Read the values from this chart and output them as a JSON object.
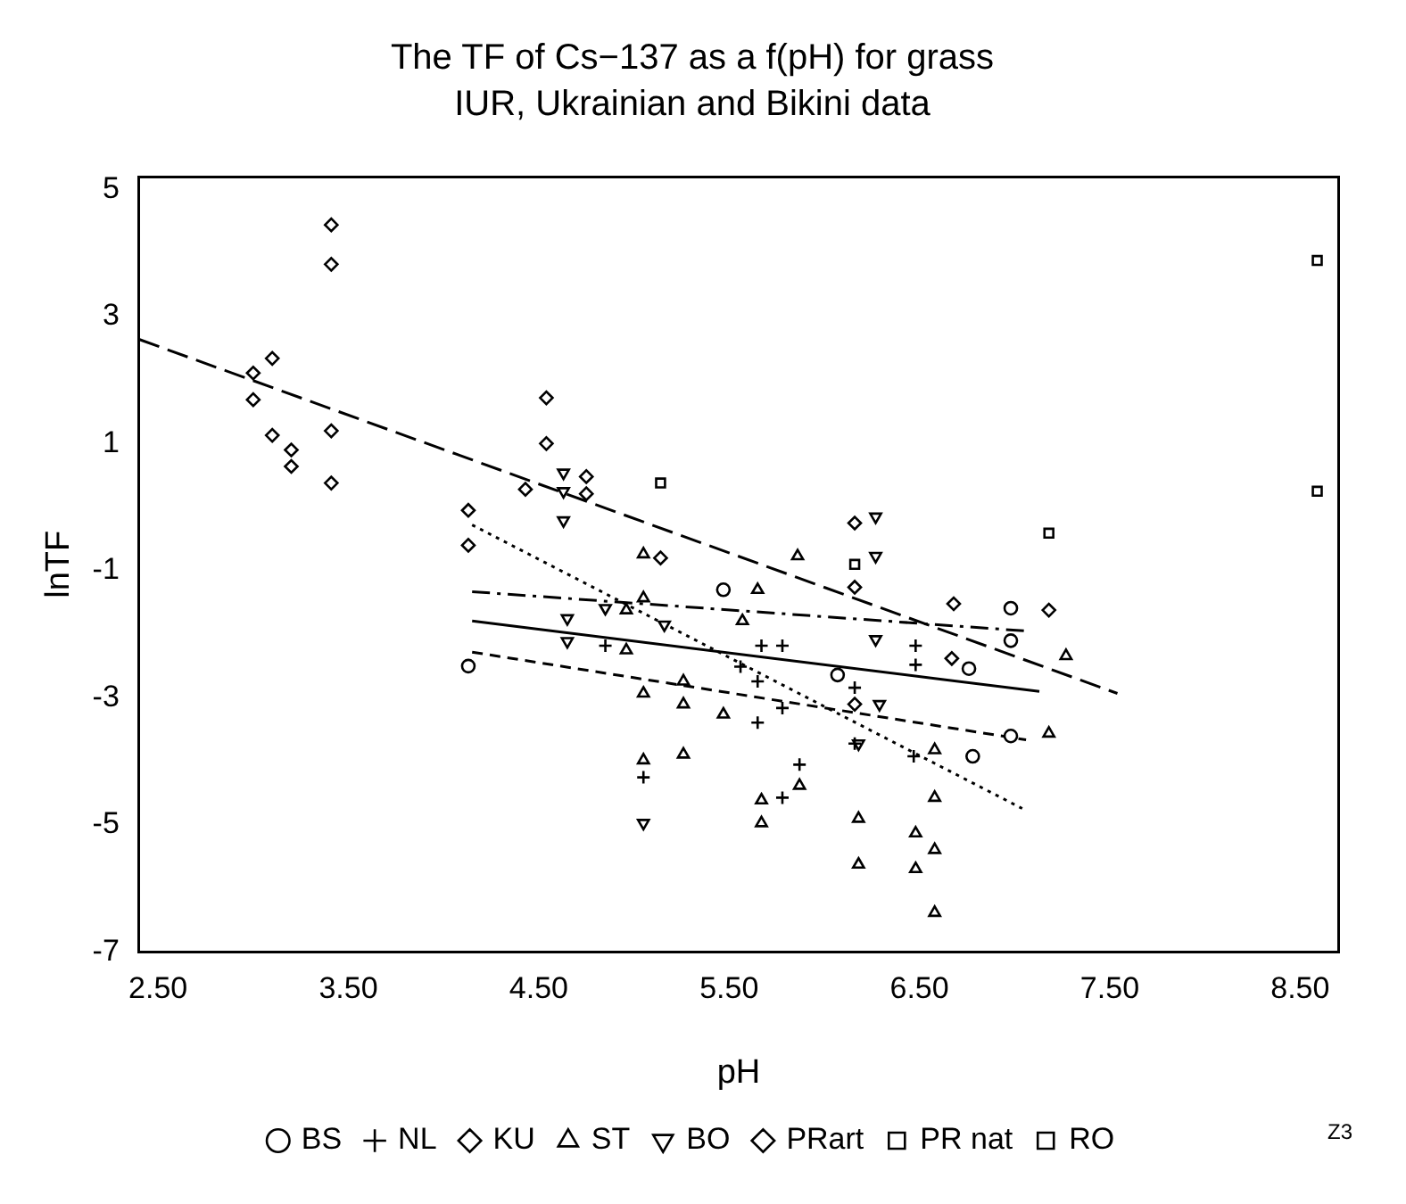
{
  "chart_data": {
    "type": "scatter",
    "title": "The TF of Cs−137 as a f(pH) for grass",
    "subtitle": "IUR, Ukrainian and Bikini data",
    "xlabel": "pH",
    "ylabel": "lnTF",
    "xlim": [
      2.4,
      8.7
    ],
    "xticks": [
      {
        "value": 2.5,
        "label": "2.50"
      },
      {
        "value": 3.5,
        "label": "3.50"
      },
      {
        "value": 4.5,
        "label": "4.50"
      },
      {
        "value": 5.5,
        "label": "5.50"
      },
      {
        "value": 6.5,
        "label": "6.50"
      },
      {
        "value": 7.5,
        "label": "7.50"
      },
      {
        "value": 8.5,
        "label": "8.50"
      }
    ],
    "ylim": [
      -7,
      5.2
    ],
    "yticks": [
      -7,
      -5,
      -3,
      -1,
      1,
      3,
      5
    ],
    "grid": false,
    "legend": "bottom",
    "annotations": [
      "Z3"
    ],
    "series": [
      {
        "name": "BS",
        "color": "#000000",
        "marker": "circle",
        "x": [
          4.13,
          5.47,
          6.07,
          6.76,
          6.98,
          6.98,
          6.98,
          6.78
        ],
        "values": [
          -2.5,
          -1.3,
          -2.64,
          -2.54,
          -1.59,
          -2.1,
          -3.6,
          -3.92
        ]
      },
      {
        "name": "NL",
        "color": "#000000",
        "marker": "cross",
        "x": [
          4.85,
          5.05,
          5.56,
          5.67,
          5.78,
          6.48,
          6.48,
          5.65,
          5.65,
          5.78,
          5.87,
          5.78,
          6.16,
          6.16,
          6.47
        ],
        "values": [
          -2.18,
          -4.25,
          -2.51,
          -2.18,
          -2.18,
          -2.18,
          -2.48,
          -2.74,
          -3.39,
          -3.16,
          -4.05,
          -4.57,
          -2.84,
          -3.72,
          -3.92
        ]
      },
      {
        "name": "KU",
        "color": "#000000",
        "marker": "diamond",
        "x": [
          3.41,
          3.41,
          3.1,
          3.0,
          3.0,
          3.1,
          3.2,
          3.2,
          3.41,
          3.41,
          4.54,
          4.54,
          4.43,
          4.75,
          4.75,
          4.13,
          4.13,
          6.16,
          6.68,
          6.67,
          6.16
        ],
        "values": [
          4.44,
          3.82,
          2.34,
          2.11,
          1.69,
          1.13,
          0.9,
          0.64,
          1.2,
          0.38,
          1.72,
          1.0,
          0.28,
          0.48,
          0.21,
          -0.05,
          -0.6,
          -0.25,
          -1.52,
          -2.38,
          -3.1
        ]
      },
      {
        "name": "ST",
        "color": "#000000",
        "marker": "triangle",
        "x": [
          5.05,
          5.05,
          4.96,
          4.96,
          5.05,
          5.05,
          5.26,
          5.26,
          5.26,
          5.86,
          5.65,
          5.57,
          5.47,
          5.67,
          5.67,
          5.87,
          6.18,
          6.18,
          6.58,
          6.58,
          6.48,
          6.48,
          6.58,
          6.58,
          7.27,
          7.18
        ],
        "values": [
          -0.74,
          -1.43,
          -1.62,
          -2.25,
          -2.93,
          -3.98,
          -2.74,
          -3.1,
          -3.89,
          -0.77,
          -1.3,
          -1.79,
          -3.26,
          -4.61,
          -4.97,
          -4.38,
          -4.9,
          -5.62,
          -3.82,
          -4.57,
          -5.13,
          -5.69,
          -6.38,
          -5.39,
          -2.34,
          -3.56
        ]
      },
      {
        "name": "BO",
        "color": "#000000",
        "marker": "triangle-down",
        "x": [
          4.63,
          4.63,
          4.63,
          4.65,
          4.65,
          4.85,
          5.16,
          5.05,
          6.27,
          6.27,
          6.27,
          6.29,
          6.18
        ],
        "values": [
          0.54,
          0.25,
          -0.21,
          -1.75,
          -2.11,
          -1.59,
          -1.85,
          -4.97,
          -0.15,
          -0.77,
          -2.08,
          -3.1,
          -3.72
        ]
      },
      {
        "name": "PRart",
        "color": "#000000",
        "marker": "diamond",
        "x": [
          5.14,
          6.16,
          7.18
        ],
        "values": [
          -0.8,
          -1.26,
          -1.62
        ]
      },
      {
        "name": "PR nat",
        "color": "#000000",
        "marker": "square",
        "x": [
          5.14,
          6.16,
          7.18
        ],
        "values": [
          0.38,
          -0.9,
          -0.41
        ]
      },
      {
        "name": "RO",
        "color": "#000000",
        "marker": "square",
        "x": [
          8.59,
          8.59
        ],
        "values": [
          3.88,
          0.25
        ]
      },
      {
        "type": "line",
        "color": "#000000",
        "line_style": "solid",
        "marker": "none",
        "x": [
          4.15,
          7.13
        ],
        "values": [
          -1.79,
          -2.9
        ]
      },
      {
        "type": "line",
        "color": "#000000",
        "line_style": "dashed",
        "marker": "none",
        "x": [
          4.15,
          7.06
        ],
        "values": [
          -2.28,
          -3.66
        ]
      },
      {
        "type": "line",
        "color": "#000000",
        "line_style": "longdashed",
        "marker": "none",
        "x": [
          2.4,
          7.54
        ],
        "values": [
          2.64,
          -2.93
        ]
      },
      {
        "type": "line",
        "color": "#000000",
        "line_style": "dotted",
        "marker": "none",
        "x": [
          4.15,
          7.04
        ],
        "values": [
          -0.28,
          -4.74
        ]
      },
      {
        "type": "line",
        "color": "#000000",
        "line_style": "dashdot",
        "marker": "none",
        "x": [
          4.15,
          7.07
        ],
        "values": [
          -1.33,
          -1.95
        ]
      }
    ]
  }
}
